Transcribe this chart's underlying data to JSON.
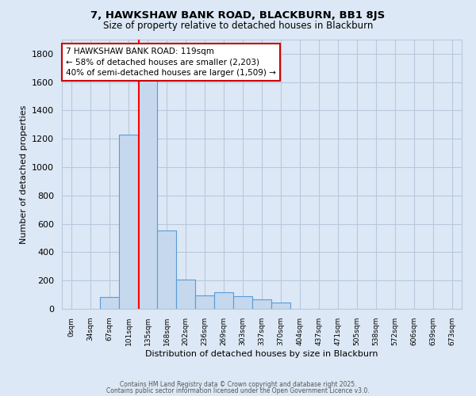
{
  "title1": "7, HAWKSHAW BANK ROAD, BLACKBURN, BB1 8JS",
  "title2": "Size of property relative to detached houses in Blackburn",
  "xlabel": "Distribution of detached houses by size in Blackburn",
  "ylabel": "Number of detached properties",
  "bin_labels": [
    "0sqm",
    "34sqm",
    "67sqm",
    "101sqm",
    "135sqm",
    "168sqm",
    "202sqm",
    "236sqm",
    "269sqm",
    "303sqm",
    "337sqm",
    "370sqm",
    "404sqm",
    "437sqm",
    "471sqm",
    "505sqm",
    "538sqm",
    "572sqm",
    "606sqm",
    "639sqm",
    "673sqm"
  ],
  "bar_heights": [
    0,
    0,
    85,
    1230,
    1780,
    555,
    205,
    95,
    115,
    90,
    65,
    45,
    0,
    0,
    0,
    0,
    0,
    0,
    0,
    0,
    0
  ],
  "bar_color": "#c5d8ee",
  "bar_edge_color": "#5b9bd5",
  "background_color": "#dce8f5",
  "grid_color": "#b8c8dc",
  "red_line_bin": 3.55,
  "annotation_text": "7 HAWKSHAW BANK ROAD: 119sqm\n← 58% of detached houses are smaller (2,203)\n40% of semi-detached houses are larger (1,509) →",
  "annotation_box_color": "#ffffff",
  "annotation_border_color": "#cc0000",
  "ylim": [
    0,
    1900
  ],
  "yticks": [
    0,
    200,
    400,
    600,
    800,
    1000,
    1200,
    1400,
    1600,
    1800
  ],
  "footer1": "Contains HM Land Registry data © Crown copyright and database right 2025.",
  "footer2": "Contains public sector information licensed under the Open Government Licence v3.0."
}
